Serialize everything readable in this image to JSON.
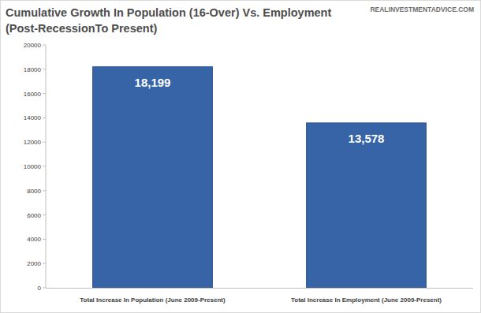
{
  "chart_data": {
    "type": "bar",
    "title": "Cumulative Growth In Population (16-Over) Vs. Employment",
    "subtitle": "(Post-RecessionTo Present)",
    "annotations": [
      "REALINVESTMENTADVICE.COM"
    ],
    "categories": [
      "Total Increase In Population (June 2009-Present)",
      "Total Increase In Employment (June 2009-Present)"
    ],
    "values": [
      18199,
      13578
    ],
    "value_labels": [
      "18,199",
      "13,578"
    ],
    "data_labels": true,
    "color": "#3764a6",
    "ylim": [
      0,
      20000
    ],
    "yticks": [
      0,
      2000,
      4000,
      6000,
      8000,
      10000,
      12000,
      14000,
      16000,
      18000,
      20000
    ],
    "grid": false
  }
}
